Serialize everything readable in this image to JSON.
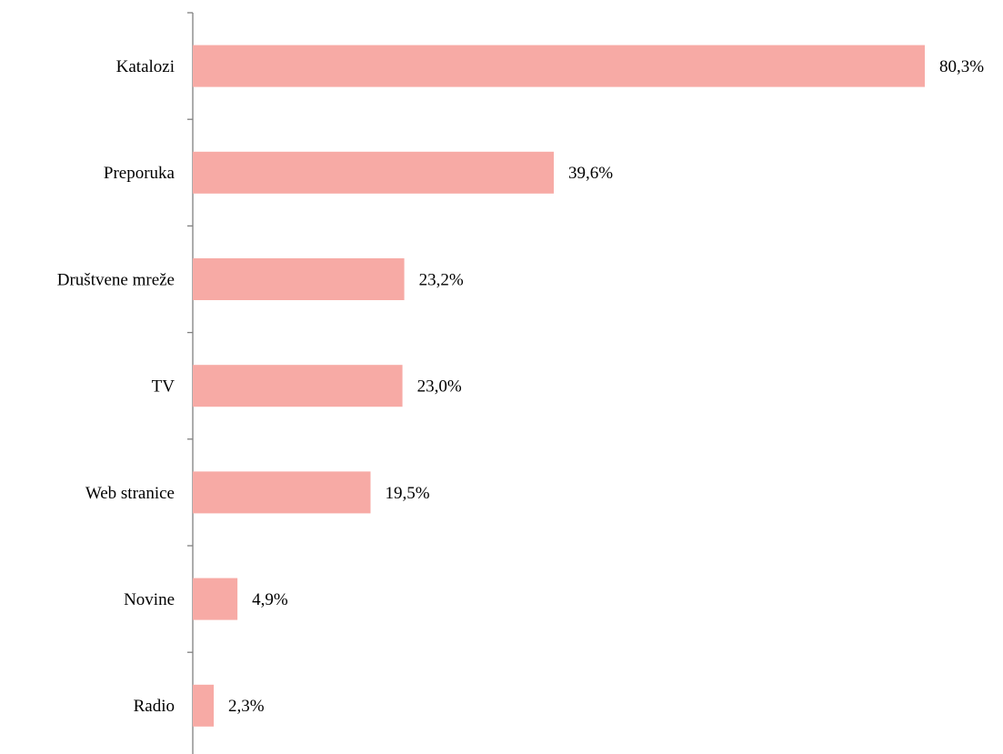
{
  "chart_data": {
    "type": "hbar",
    "categories": [
      "Katalozi",
      "Preporuka",
      "Društvene mreže",
      "TV",
      "Web stranice",
      "Novine",
      "Radio"
    ],
    "values": [
      80.3,
      39.6,
      23.2,
      23.0,
      19.5,
      4.9,
      2.3
    ],
    "value_labels": [
      "80,3%",
      "39,6%",
      "23,2%",
      "23,0%",
      "19,5%",
      "4,9%",
      "2,3%"
    ],
    "color": "#f7aaa5"
  }
}
